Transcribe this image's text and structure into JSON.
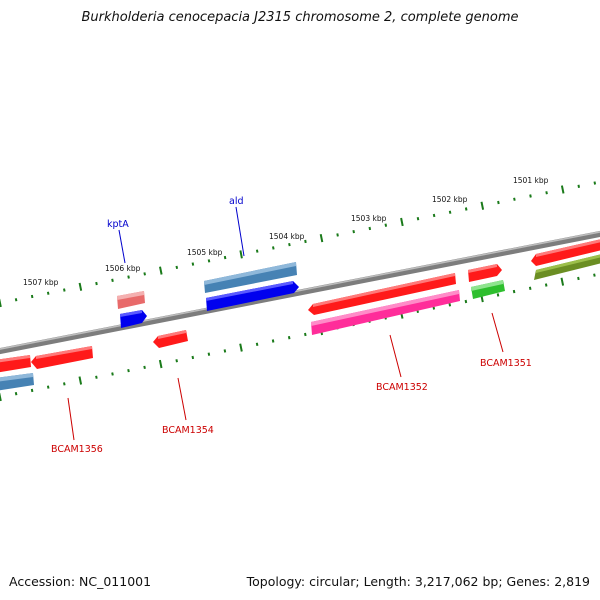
{
  "title": "Burkholderia cenocepacia J2315 chromosome 2, complete genome",
  "footer": {
    "accession": "Accession: NC_011001",
    "summary": "Topology: circular; Length: 3,217,062 bp; Genes: 2,819"
  },
  "scale": {
    "unit": "kbp",
    "labels": [
      "1501 kbp",
      "1502 kbp",
      "1503 kbp",
      "1504 kbp",
      "1505 kbp",
      "1506 kbp",
      "1507 kbp"
    ]
  },
  "gene_labels": [
    {
      "name": "kptA",
      "color": "#0000cc"
    },
    {
      "name": "ald",
      "color": "#0000cc"
    },
    {
      "name": "BCAM1351",
      "color": "#cc0000"
    },
    {
      "name": "BCAM1352",
      "color": "#cc0000"
    },
    {
      "name": "BCAM1354",
      "color": "#cc0000"
    },
    {
      "name": "BCAM1356",
      "color": "#cc0000"
    }
  ],
  "colors": {
    "backbone": "#808080",
    "red_feature": "#ff1a1a",
    "pink_feature": "#ff2d9a",
    "steel_feature": "#4682b4",
    "blue_feature": "#0000ee",
    "light_red_feature": "#e86a6a",
    "green_feature": "#2ebf2e",
    "olive_feature": "#6b8e23",
    "tick": "#1a7a1a"
  }
}
